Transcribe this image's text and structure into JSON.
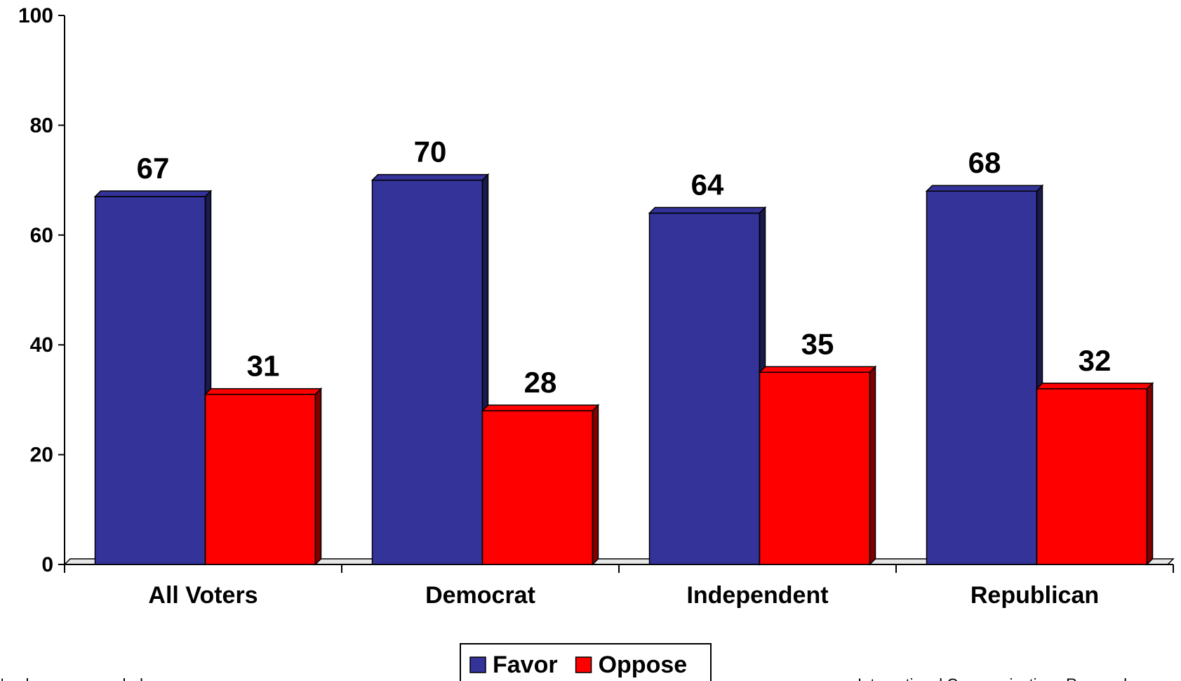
{
  "chart_data": {
    "type": "bar",
    "categories": [
      "All Voters",
      "Democrat",
      "Independent",
      "Republican"
    ],
    "series": [
      {
        "name": "Favor",
        "values": [
          67,
          70,
          64,
          68
        ],
        "color": "#333399",
        "side_color": "#1a1a4d"
      },
      {
        "name": "Oppose",
        "values": [
          31,
          28,
          35,
          32
        ],
        "color": "#ff0000",
        "side_color": "#800000"
      }
    ],
    "ylim": [
      0,
      100
    ],
    "yticks": [
      "0",
      "20",
      "40",
      "60",
      "80",
      "100"
    ],
    "grid": false,
    "legend_position": "bottom-center",
    "style": "3d"
  },
  "footer": {
    "left_note": "Numbers are rounded",
    "right_note": "International Communications Research"
  }
}
